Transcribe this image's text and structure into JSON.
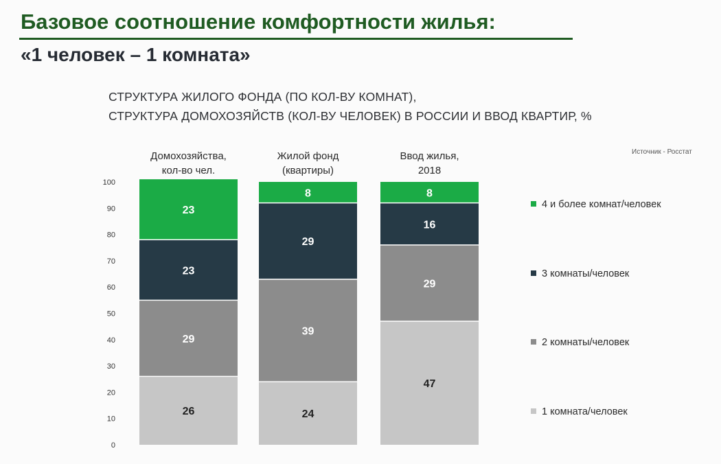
{
  "slide": {
    "title": "Базовое соотношение комфортности жилья:",
    "subtitle": "«1 человек – 1 комната»"
  },
  "chart_heading": {
    "line1": "СТРУКТУРА ЖИЛОГО ФОНДА (ПО КОЛ-ВУ КОМНАТ),",
    "line2": "СТРУКТУРА ДОМОХОЗЯЙСТВ (КОЛ-ВУ ЧЕЛОВЕК) В РОССИИ И ВВОД КВАРТИР, %"
  },
  "source": "Источник - Росстат",
  "colors": {
    "one_room": "#c6c6c6",
    "two_rooms": "#8c8c8c",
    "three_rooms": "#263a46",
    "four_plus": "#1bab46",
    "gap": "#ffffff"
  },
  "chart_data": {
    "type": "bar",
    "stacked": true,
    "title": "",
    "xlabel": "",
    "ylabel": "",
    "ylim": [
      0,
      100
    ],
    "yticks": [
      0,
      10,
      20,
      30,
      40,
      50,
      60,
      70,
      80,
      90,
      100
    ],
    "categories": [
      [
        "Домохозяйства,",
        "кол-во чел."
      ],
      [
        "Жилой фонд",
        "(квартиры)"
      ],
      [
        "Ввод жилья,",
        "2018"
      ]
    ],
    "series": [
      {
        "name": "1 комната/человек",
        "values": [
          26,
          24,
          47
        ],
        "color": "#c6c6c6",
        "label_color": "#222222"
      },
      {
        "name": "2 комнаты/человек",
        "values": [
          29,
          39,
          29
        ],
        "color": "#8c8c8c",
        "label_color": "#ffffff"
      },
      {
        "name": "3 комнаты/человек",
        "values": [
          23,
          29,
          16
        ],
        "color": "#263a46",
        "label_color": "#ffffff"
      },
      {
        "name": "4 и более комнат/человек",
        "values": [
          23,
          8,
          8
        ],
        "color": "#1bab46",
        "label_color": "#ffffff"
      }
    ],
    "legend_order": [
      3,
      2,
      1,
      0
    ],
    "legend_position": "right",
    "grid": false
  }
}
